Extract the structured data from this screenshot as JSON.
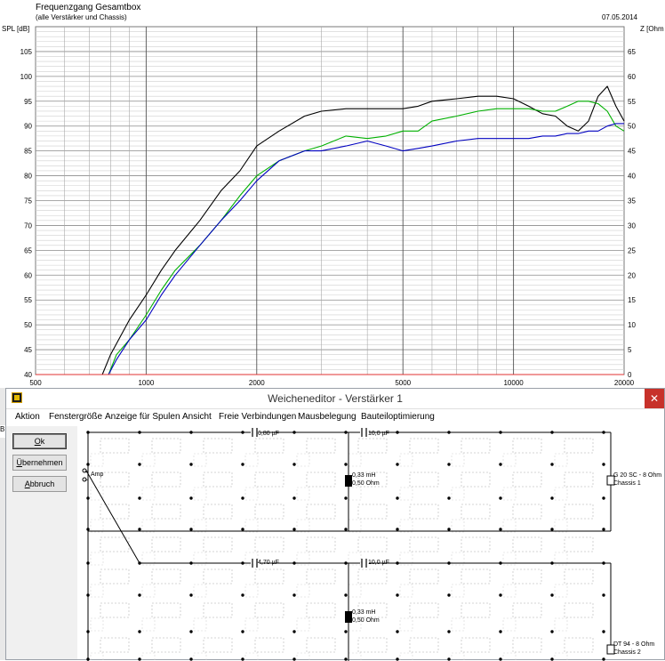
{
  "chart_data": {
    "type": "line",
    "title": "Frequenzgang Gesamtbox",
    "subtitle": "(alle Verstärker und Chassis)",
    "date": "07.05.2014",
    "ylabel_left": "SPL [dB]",
    "ylabel_right": "Z [Ohm",
    "x_scale": "log",
    "xlim": [
      500,
      20000
    ],
    "ylim_left": [
      40,
      110
    ],
    "ylim_right": [
      0,
      70
    ],
    "x_ticks": [
      "500",
      "1000",
      "2000",
      "5000",
      "10000",
      "20000"
    ],
    "y_ticks_left": [
      "105",
      "100",
      "95",
      "90",
      "85",
      "80",
      "75",
      "70",
      "65",
      "60",
      "55",
      "50",
      "45",
      "40"
    ],
    "y_ticks_right": [
      "65",
      "60",
      "55",
      "50",
      "45",
      "40",
      "35",
      "30",
      "25",
      "20",
      "15",
      "10",
      "5",
      "0"
    ],
    "grid": true,
    "series": [
      {
        "color": "#000000",
        "x": [
          760,
          800,
          900,
          1000,
          1100,
          1200,
          1400,
          1600,
          1800,
          2000,
          2300,
          2700,
          3000,
          3500,
          4000,
          4500,
          5000,
          5500,
          6000,
          7000,
          8000,
          9000,
          10000,
          11000,
          12000,
          13000,
          14000,
          15000,
          16000,
          17000,
          18000,
          19000,
          20000
        ],
        "y": [
          40,
          44,
          51,
          56,
          61,
          65,
          71,
          77,
          81,
          86,
          89,
          92,
          93,
          93.5,
          93.5,
          93.5,
          93.5,
          94,
          95,
          95.5,
          96,
          96,
          95.5,
          94,
          92.5,
          92,
          90,
          89,
          91,
          96,
          98,
          94,
          91
        ]
      },
      {
        "color": "#00b000",
        "x": [
          790,
          830,
          900,
          1000,
          1100,
          1200,
          1400,
          1600,
          1800,
          2000,
          2300,
          2700,
          3000,
          3500,
          4000,
          4500,
          5000,
          5500,
          6000,
          7000,
          8000,
          9000,
          10000,
          11000,
          12000,
          13000,
          14000,
          15000,
          16000,
          17000,
          18000,
          19000,
          20000
        ],
        "y": [
          40,
          44,
          47,
          52,
          57,
          61,
          66,
          71,
          76,
          80,
          83,
          85,
          86,
          88,
          87.5,
          88,
          89,
          89,
          91,
          92,
          93,
          93.5,
          93.5,
          93.5,
          93,
          93,
          94,
          95,
          95,
          94.5,
          93,
          90,
          89
        ]
      },
      {
        "color": "#0000c0",
        "x": [
          790,
          830,
          900,
          1000,
          1100,
          1200,
          1400,
          1600,
          1800,
          2000,
          2300,
          2700,
          3000,
          3500,
          4000,
          4500,
          5000,
          5500,
          6000,
          7000,
          8000,
          9000,
          10000,
          11000,
          12000,
          13000,
          14000,
          15000,
          16000,
          17000,
          18000,
          19000,
          20000
        ],
        "y": [
          40,
          43,
          47,
          51,
          56,
          60,
          66,
          71,
          75,
          79,
          83,
          85,
          85,
          86,
          87,
          86,
          85,
          85.5,
          86,
          87,
          87.5,
          87.5,
          87.5,
          87.5,
          88,
          88,
          88.5,
          88.5,
          89,
          89,
          90,
          90.5,
          90.5
        ]
      },
      {
        "color": "#e03030",
        "x": [
          500,
          20000
        ],
        "y": [
          40,
          40
        ]
      }
    ]
  },
  "window": {
    "title": "Weicheneditor - Verstärker 1",
    "close_label": "✕",
    "app_icon": "speaker-app-icon"
  },
  "menu": [
    "Aktion",
    "Fenstergröße",
    "Anzeige für Spulen",
    "Ansicht",
    "Freie Verbindungen",
    "Mausbelegung",
    "Bauteiloptimierung"
  ],
  "buttons": {
    "ok": "Ok",
    "ok_underline": "O",
    "ok_rest": "k",
    "apply_underline": "Ü",
    "apply_rest": "bernehmen",
    "cancel_underline": "A",
    "cancel_rest": "bbruch"
  },
  "circuit": {
    "amp_label": "Amp",
    "amp_plus": "+",
    "amp_minus": "−",
    "branch1": {
      "cap1": "6,80 µF",
      "cap2": "10,0 µF",
      "coil_l": "0,33 mH",
      "coil_r": "0,50 Ohm",
      "driver": "G 20 SC - 8 Ohm",
      "driver_name": "Chassis 1"
    },
    "branch2": {
      "cap1": "4,70 µF",
      "cap2": "10,0 µF",
      "coil_l": "0,33 mH",
      "coil_r": "0,50 Ohm",
      "driver": "DT 94 - 8 Ohm",
      "driver_name": "Chassis 2"
    }
  },
  "stray_label": "B"
}
